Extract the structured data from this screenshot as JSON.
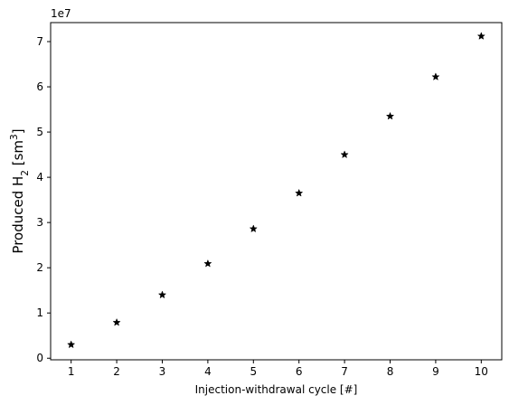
{
  "chart_data": {
    "type": "scatter",
    "title": "",
    "xlabel": "Injection-withdrawal cycle [#]",
    "ylabel": "Produced H",
    "ylabel_subscript": "2",
    "ylabel_unit_open": " [sm",
    "ylabel_unit_superscript": "3",
    "ylabel_unit_close": "]",
    "y_offset_label": "1e7",
    "y_scale": 10000000,
    "xlim": [
      0.55,
      10.45
    ],
    "ylim": [
      -350000,
      74200000
    ],
    "x_ticks": [
      1,
      2,
      3,
      4,
      5,
      6,
      7,
      8,
      9,
      10
    ],
    "y_ticks": [
      0,
      1,
      2,
      3,
      4,
      5,
      6,
      7
    ],
    "grid": false,
    "marker": "star",
    "marker_color": "#000000",
    "series": [
      {
        "x": [
          1,
          2,
          3,
          4,
          5,
          6,
          7,
          8,
          9,
          10
        ],
        "y": [
          3000000,
          7900000,
          14000000,
          20900000,
          28600000,
          36500000,
          45000000,
          53500000,
          62200000,
          71200000
        ]
      }
    ]
  }
}
